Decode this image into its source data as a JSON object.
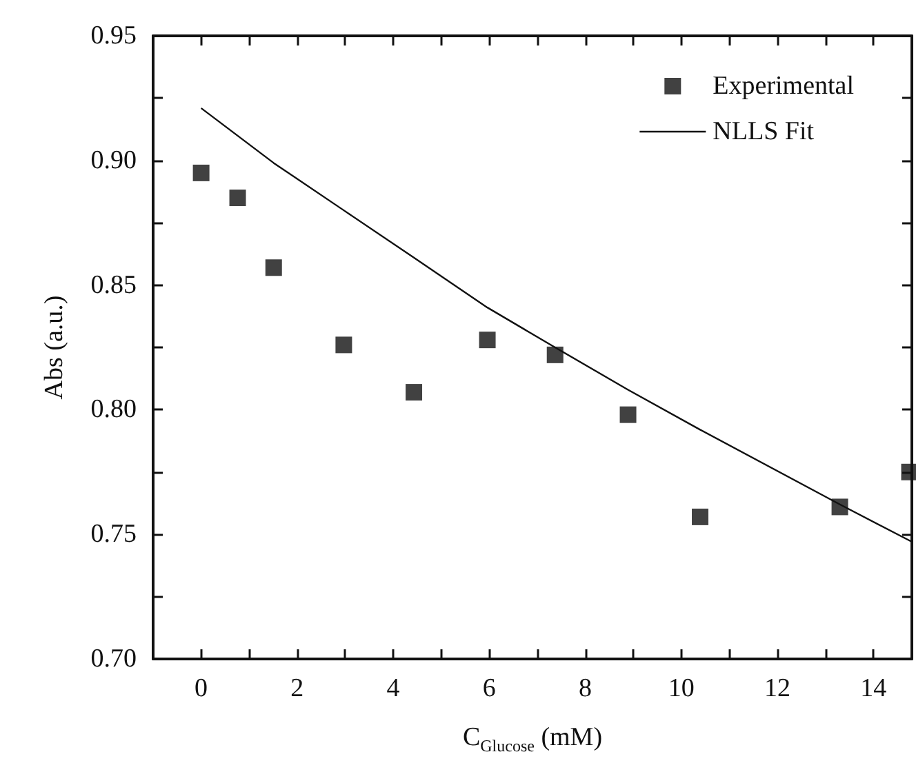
{
  "chart_data": {
    "type": "scatter",
    "xlabel": "C$_{Glucose}$ (mM)",
    "ylabel": "Abs (a.u.)",
    "xlim": [
      -1,
      14.8
    ],
    "ylim": [
      0.7,
      0.95
    ],
    "xticks": [
      0,
      {
        "value": 1,
        "label": null
      },
      2,
      {
        "value": 3,
        "label": null
      },
      4,
      {
        "value": 5,
        "label": null
      },
      6,
      {
        "value": 7,
        "label": null
      },
      8,
      {
        "value": 9,
        "label": null
      },
      10,
      {
        "value": 11,
        "label": null
      },
      12,
      {
        "value": 13,
        "label": null
      },
      14
    ],
    "yticks": [
      {
        "value": 0.7,
        "label": "0.70"
      },
      {
        "value": 0.725,
        "label": null
      },
      0.75,
      {
        "value": 0.775,
        "label": null
      },
      {
        "value": 0.8,
        "label": "0.80"
      },
      {
        "value": 0.825,
        "label": null
      },
      0.85,
      {
        "value": 0.875,
        "label": null
      },
      {
        "value": 0.9,
        "label": "0.90"
      },
      {
        "value": 0.925,
        "label": null
      },
      0.95
    ],
    "grid": false,
    "legend": "top right",
    "series": [
      {
        "name": "Experimental",
        "marker": "square",
        "color": "#111111",
        "x": [
          0,
          0.76,
          1.51,
          2.97,
          4.43,
          5.96,
          7.37,
          8.89,
          10.39,
          13.3,
          14.75
        ],
        "values": [
          0.895,
          0.885,
          0.857,
          0.826,
          0.807,
          0.828,
          0.822,
          0.798,
          0.757,
          0.761,
          0.775
        ]
      },
      {
        "name": "NLLS Fit",
        "type": "line",
        "marker": "none",
        "color": "#111111",
        "line_style": "solid",
        "x": [
          0,
          1.51,
          2.97,
          4.43,
          5.96,
          7.37,
          8.89,
          10.39,
          13.3,
          14.8
        ],
        "values": [
          0.921,
          0.899,
          0.88,
          0.861,
          0.841,
          0.825,
          0.808,
          0.792,
          0.762,
          0.747
        ]
      }
    ]
  }
}
